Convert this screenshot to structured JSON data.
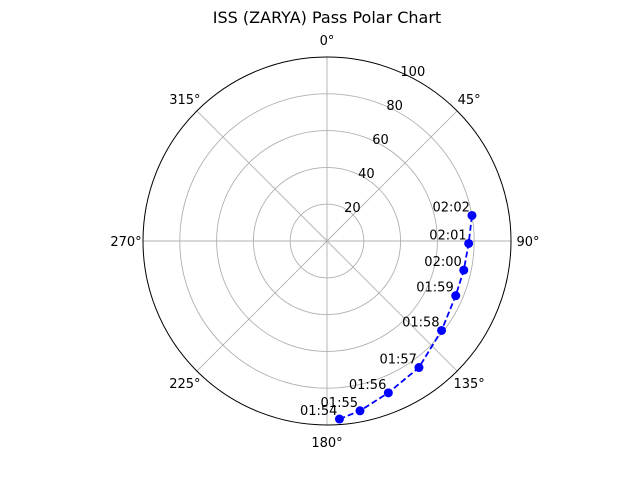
{
  "chart_data": {
    "type": "scatter",
    "subtype": "polar",
    "title": "ISS (ZARYA) Pass Polar Chart",
    "theta_zero": "N",
    "theta_direction": "clockwise",
    "angle_tick_labels": [
      "0°",
      "45°",
      "90°",
      "135°",
      "180°",
      "225°",
      "270°",
      "315°"
    ],
    "angle_ticks_deg": [
      0,
      45,
      90,
      135,
      180,
      225,
      270,
      315
    ],
    "radial_ticks": [
      20,
      40,
      60,
      80,
      100
    ],
    "radial_tick_labels": [
      "20",
      "40",
      "60",
      "80",
      "100"
    ],
    "rlim": [
      0,
      100
    ],
    "grid": true,
    "series": [
      {
        "color": "#0000ff",
        "line_style": "dashed",
        "marker": "circle",
        "points": [
          {
            "label": "01:54",
            "azimuth": 176,
            "r": 97
          },
          {
            "label": "01:55",
            "azimuth": 169,
            "r": 94
          },
          {
            "label": "01:56",
            "azimuth": 158,
            "r": 89
          },
          {
            "label": "01:57",
            "azimuth": 144,
            "r": 85
          },
          {
            "label": "01:58",
            "azimuth": 128,
            "r": 79
          },
          {
            "label": "01:59",
            "azimuth": 113,
            "r": 76
          },
          {
            "label": "02:00",
            "azimuth": 102,
            "r": 76
          },
          {
            "label": "02:01",
            "azimuth": 91,
            "r": 77
          },
          {
            "label": "02:02",
            "azimuth": 80,
            "r": 80
          }
        ]
      }
    ]
  }
}
